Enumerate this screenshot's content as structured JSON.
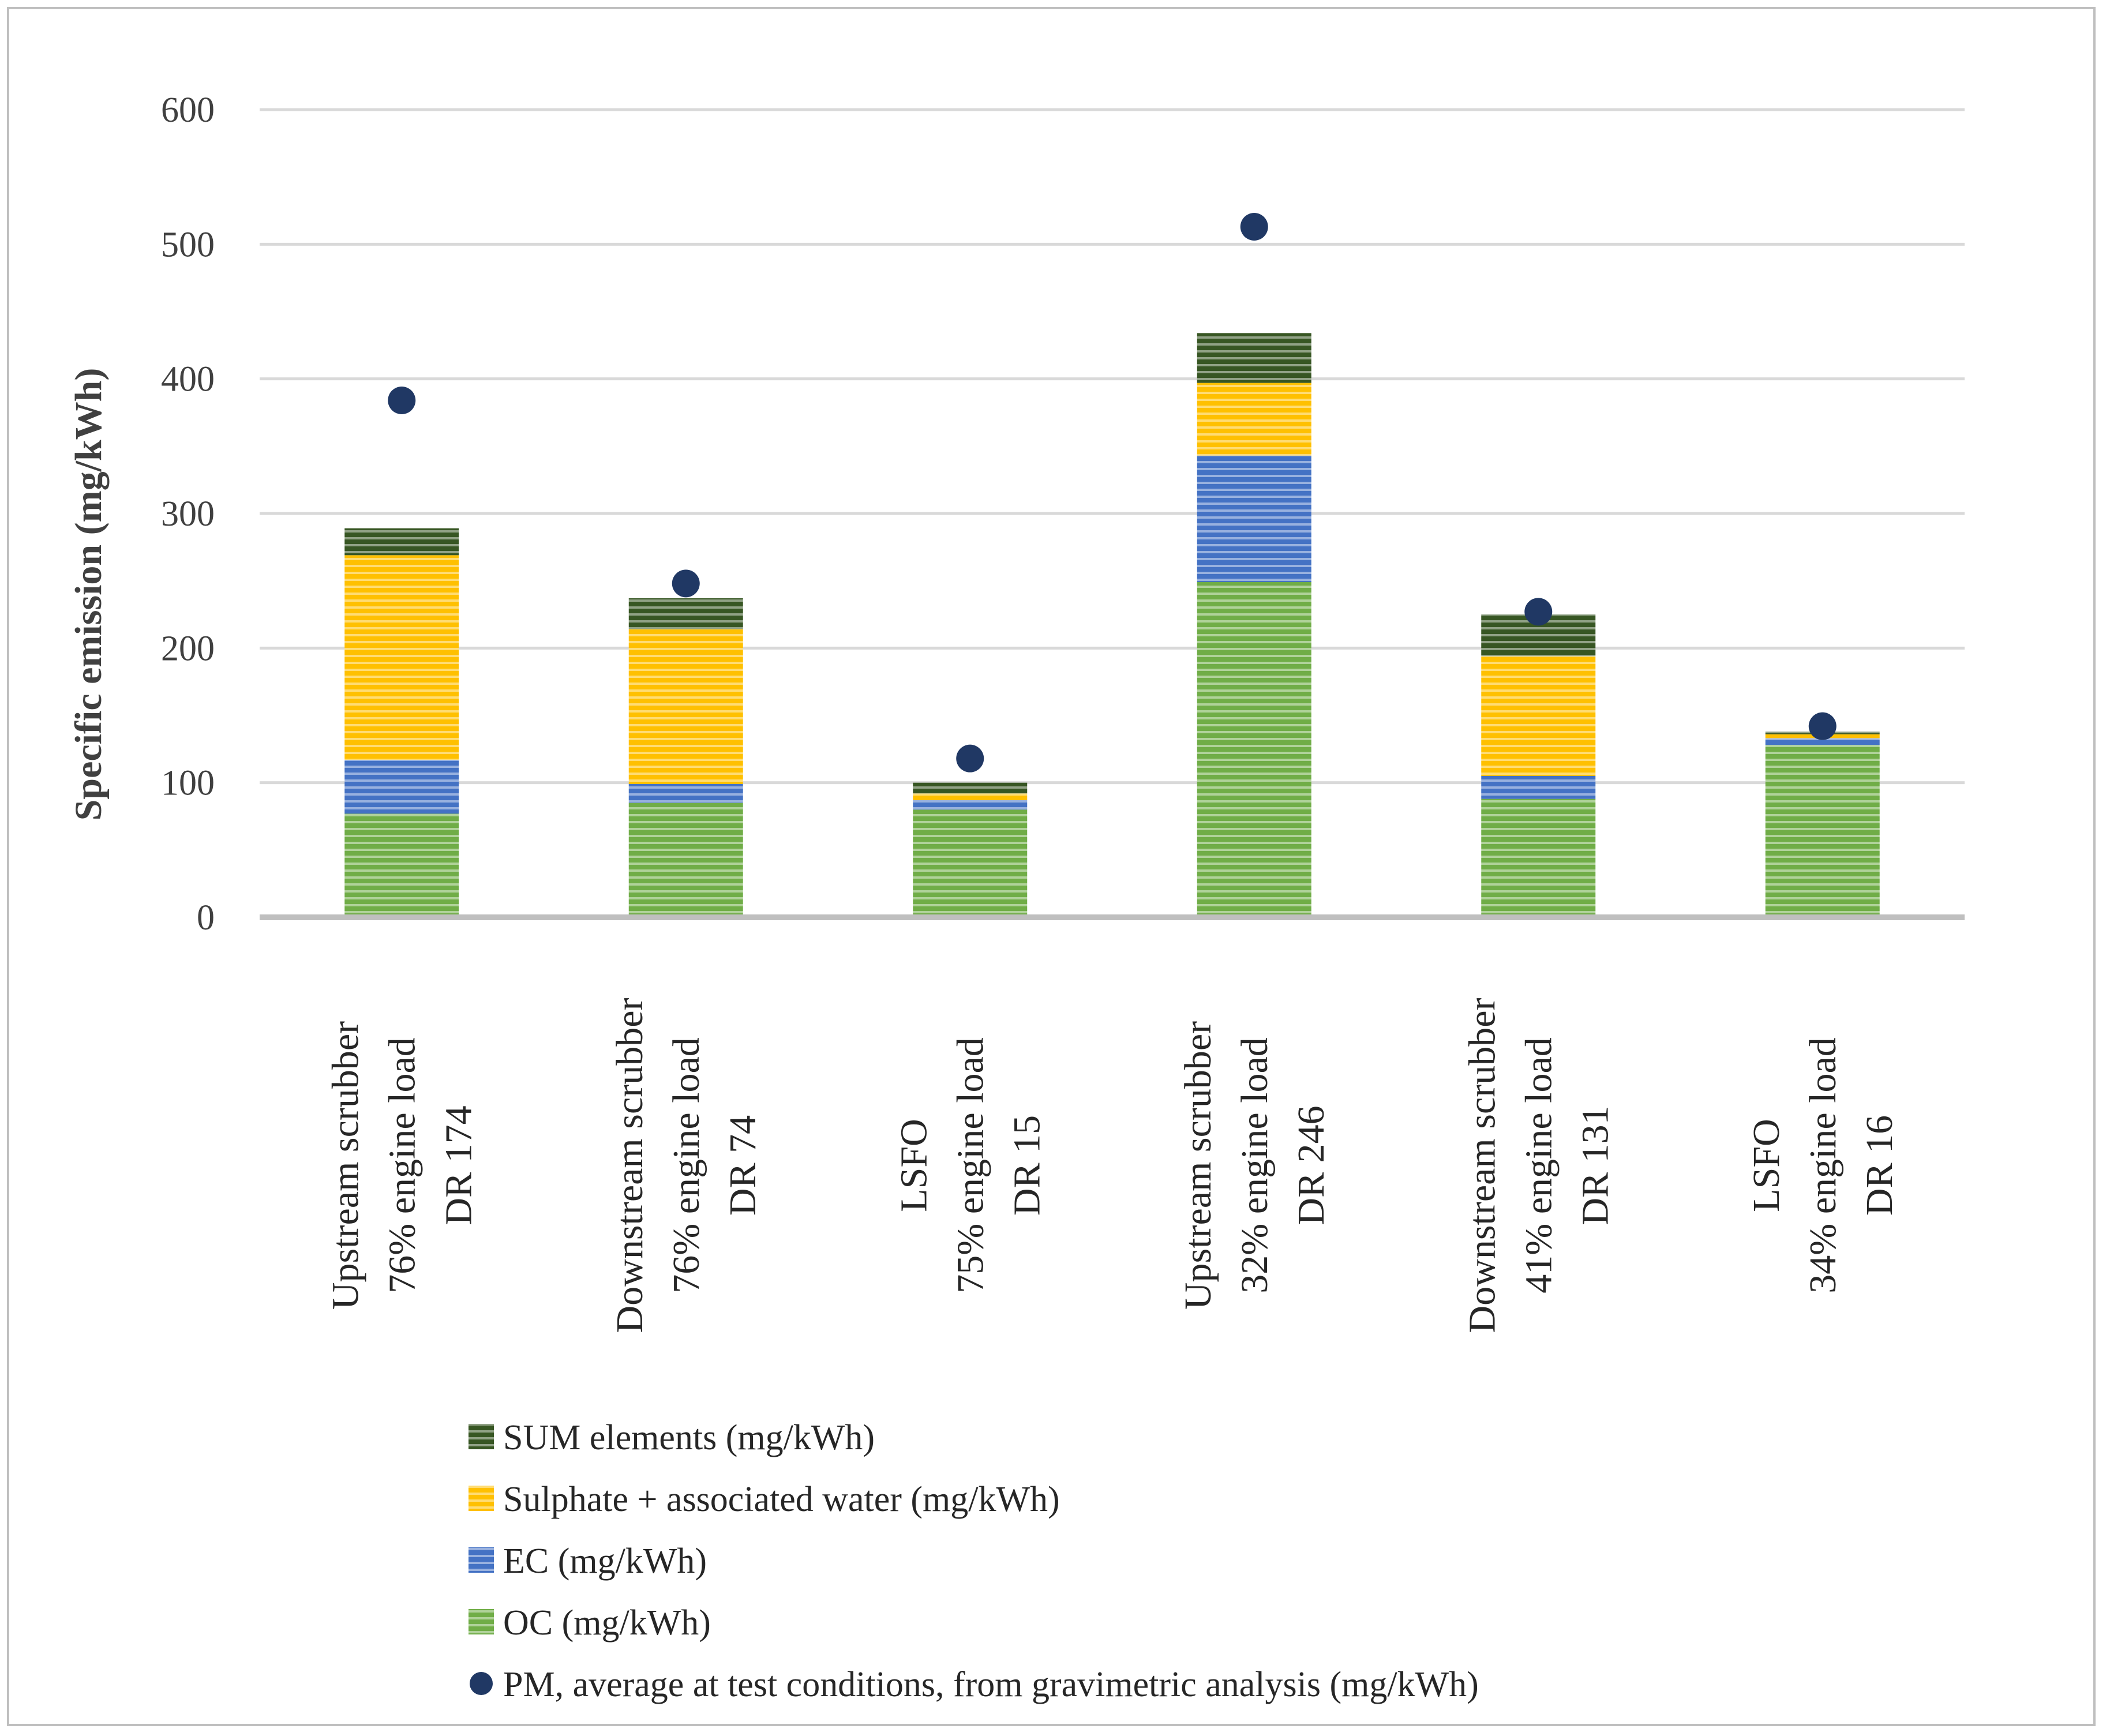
{
  "chart_data": {
    "type": "bar",
    "stacked": true,
    "ylabel": "Specific emission (mg/kWh)",
    "xlabel": "",
    "ylim": [
      0,
      600
    ],
    "yticks": [
      0,
      100,
      200,
      300,
      400,
      500,
      600
    ],
    "grid": true,
    "categories": [
      [
        "Upstream scrubber",
        "76% engine load",
        "DR 174"
      ],
      [
        "Downstream scrubber",
        "76% engine load",
        "DR 74"
      ],
      [
        "LSFO",
        "75% engine load",
        "DR 15"
      ],
      [
        "Upstream scrubber",
        "32% engine load",
        "DR 246"
      ],
      [
        "Downstream scrubber",
        "41% engine load",
        "DR 131"
      ],
      [
        "LSFO",
        "34% engine load",
        "DR 16"
      ]
    ],
    "series": [
      {
        "name": "OC (mg/kWh)",
        "color": "#70ad47",
        "values": [
          77,
          85,
          80,
          249,
          88,
          128
        ]
      },
      {
        "name": "EC (mg/kWh)",
        "color": "#4472c4",
        "values": [
          40,
          14,
          7,
          94,
          17,
          5
        ]
      },
      {
        "name": "Sulphate + associated water (mg/kWh)",
        "color": "#ffc000",
        "values": [
          152,
          115,
          5,
          54,
          89,
          3
        ]
      },
      {
        "name": "SUM elements (mg/kWh)",
        "color": "#375623",
        "values": [
          20,
          23,
          8,
          37,
          31,
          2
        ]
      }
    ],
    "points": {
      "name": "PM, average at test conditions, from gravimetric analysis (mg/kWh)",
      "color": "#203864",
      "values": [
        384,
        248,
        118,
        513,
        227,
        142
      ]
    },
    "legend": {
      "placement": "bottom",
      "order": [
        "SUM elements (mg/kWh)",
        "Sulphate + associated water (mg/kWh)",
        "EC (mg/kWh)",
        "OC (mg/kWh)",
        "PM, average at test conditions, from gravimetric analysis (mg/kWh)"
      ]
    }
  }
}
